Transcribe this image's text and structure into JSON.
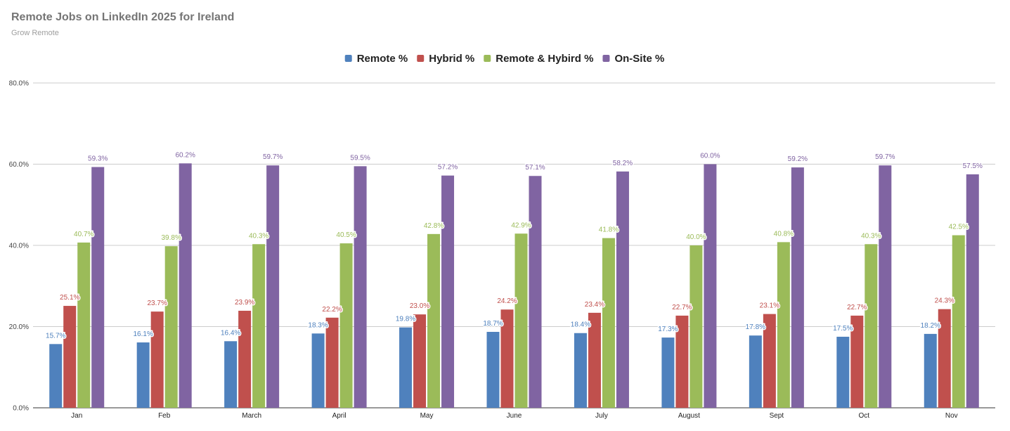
{
  "header": {
    "title": "Remote Jobs on LinkedIn 2025 for Ireland",
    "subtitle": "Grow Remote"
  },
  "chart_data": {
    "type": "bar",
    "title": "Remote Jobs on LinkedIn 2025 for Ireland",
    "subtitle": "Grow Remote",
    "xlabel": "",
    "ylabel": "",
    "ylim": [
      0,
      80
    ],
    "y_ticks": [
      0,
      20,
      40,
      60,
      80
    ],
    "y_tick_labels": [
      "0.0%",
      "20.0%",
      "40.0%",
      "60.0%",
      "80.0%"
    ],
    "grid": true,
    "legend_position": "top-center",
    "categories": [
      "Jan",
      "Feb",
      "March",
      "April",
      "May",
      "June",
      "July",
      "August",
      "Sept",
      "Oct",
      "Nov"
    ],
    "series": [
      {
        "name": "Remote %",
        "color": "#4f81bd",
        "values": [
          15.7,
          16.1,
          16.4,
          18.3,
          19.8,
          18.7,
          18.4,
          17.3,
          17.8,
          17.5,
          18.2
        ],
        "labels": [
          "15.7%",
          "16.1%",
          "16.4%",
          "18.3%",
          "19.8%",
          "18.7%",
          "18.4%",
          "17.3%",
          "17.8%",
          "17.5%",
          "18.2%"
        ]
      },
      {
        "name": "Hybrid %",
        "color": "#c0504d",
        "values": [
          25.1,
          23.7,
          23.9,
          22.2,
          23.0,
          24.2,
          23.4,
          22.7,
          23.1,
          22.7,
          24.3
        ],
        "labels": [
          "25.1%",
          "23.7%",
          "23.9%",
          "22.2%",
          "23.0%",
          "24.2%",
          "23.4%",
          "22.7%",
          "23.1%",
          "22.7%",
          "24.3%"
        ]
      },
      {
        "name": "Remote & Hybird %",
        "color": "#9bbb59",
        "values": [
          40.7,
          39.8,
          40.3,
          40.5,
          42.8,
          42.9,
          41.8,
          40.0,
          40.8,
          40.3,
          42.5
        ],
        "labels": [
          "40.7%",
          "39.8%",
          "40.3%",
          "40.5%",
          "42.8%",
          "42.9%",
          "41.8%",
          "40.0%",
          "40.8%",
          "40.3%",
          "42.5%"
        ]
      },
      {
        "name": "On-Site %",
        "color": "#8064a2",
        "values": [
          59.3,
          60.2,
          59.7,
          59.5,
          57.2,
          57.1,
          58.2,
          60.0,
          59.2,
          59.7,
          57.5
        ],
        "labels": [
          "59.3%",
          "60.2%",
          "59.7%",
          "59.5%",
          "57.2%",
          "57.1%",
          "58.2%",
          "60.0%",
          "59.2%",
          "59.7%",
          "57.5%"
        ]
      }
    ]
  }
}
